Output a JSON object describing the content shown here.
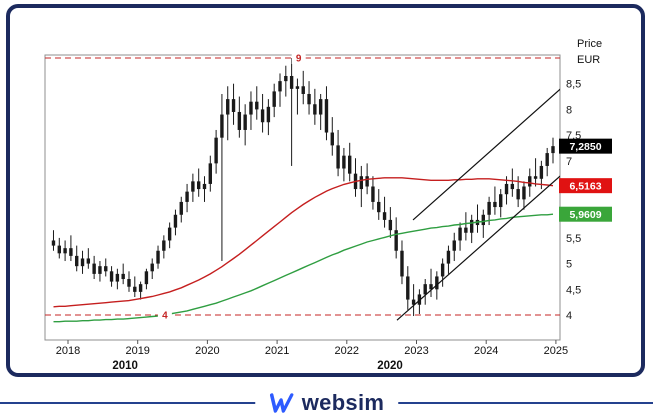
{
  "brand": {
    "name": "websim"
  },
  "chart_data": {
    "type": "candlestick",
    "interval": "monthly",
    "start": "2017-10",
    "price_axis": {
      "unit_labels": [
        "Price",
        "EUR"
      ],
      "ticks": [
        "8,5",
        "8",
        "7,5",
        "7",
        "6,5",
        "6",
        "5,5",
        "5",
        "4,5",
        "4"
      ],
      "tick_values": [
        8.5,
        8,
        7.5,
        7,
        6.5,
        6,
        5.5,
        5,
        4.5,
        4
      ],
      "range": [
        3.5,
        9.05
      ]
    },
    "time_axis": {
      "ticks": [
        "2018",
        "2019",
        "2020",
        "2021",
        "2022",
        "2023",
        "2024",
        "2025"
      ],
      "tick_values": [
        2018,
        2019,
        2020,
        2021,
        2022,
        2023,
        2024,
        2025
      ],
      "decade_labels": [
        {
          "label": "2010",
          "year": 2018.82
        },
        {
          "label": "2020",
          "year": 2022.62
        }
      ]
    },
    "hlines": [
      {
        "value": 9,
        "label": "9",
        "label_year": 2021.31,
        "color": "#c42424",
        "style": "dashed"
      },
      {
        "value": 4,
        "label": "4",
        "label_year": 2019.39,
        "color": "#c42424",
        "style": "dashed"
      }
    ],
    "last_price": 7.285,
    "last_price_label": "7,2850",
    "last_price_box_color": "#000000",
    "candle_color": "#1a1a1a",
    "ohlc": [
      [
        5.45,
        5.65,
        5.25,
        5.35
      ],
      [
        5.35,
        5.5,
        5.1,
        5.2
      ],
      [
        5.2,
        5.45,
        5.05,
        5.3
      ],
      [
        5.3,
        5.55,
        5.05,
        5.15
      ],
      [
        5.15,
        5.35,
        4.85,
        4.95
      ],
      [
        4.95,
        5.25,
        4.8,
        5.1
      ],
      [
        5.1,
        5.3,
        4.9,
        5.0
      ],
      [
        5.0,
        5.15,
        4.7,
        4.8
      ],
      [
        4.8,
        5.05,
        4.65,
        4.95
      ],
      [
        4.95,
        5.1,
        4.75,
        4.85
      ],
      [
        4.85,
        4.95,
        4.55,
        4.65
      ],
      [
        4.65,
        4.9,
        4.5,
        4.8
      ],
      [
        4.8,
        5.0,
        4.6,
        4.7
      ],
      [
        4.7,
        4.85,
        4.45,
        4.55
      ],
      [
        4.55,
        4.75,
        4.35,
        4.45
      ],
      [
        4.45,
        4.65,
        4.3,
        4.6
      ],
      [
        4.6,
        4.9,
        4.5,
        4.85
      ],
      [
        4.85,
        5.1,
        4.7,
        5.0
      ],
      [
        5.0,
        5.35,
        4.9,
        5.25
      ],
      [
        5.25,
        5.55,
        5.1,
        5.45
      ],
      [
        5.45,
        5.8,
        5.3,
        5.7
      ],
      [
        5.7,
        6.05,
        5.55,
        5.95
      ],
      [
        5.95,
        6.3,
        5.8,
        6.2
      ],
      [
        6.2,
        6.55,
        6.0,
        6.4
      ],
      [
        6.4,
        6.75,
        6.2,
        6.6
      ],
      [
        6.6,
        6.85,
        6.3,
        6.45
      ],
      [
        6.45,
        6.7,
        6.2,
        6.55
      ],
      [
        6.55,
        7.1,
        6.4,
        6.95
      ],
      [
        6.95,
        7.6,
        6.75,
        7.45
      ],
      [
        7.45,
        8.3,
        5.05,
        7.9
      ],
      [
        7.9,
        8.45,
        7.4,
        8.2
      ],
      [
        8.2,
        8.5,
        7.7,
        7.95
      ],
      [
        7.95,
        8.25,
        7.45,
        7.6
      ],
      [
        7.6,
        8.1,
        7.3,
        7.9
      ],
      [
        7.9,
        8.35,
        7.6,
        8.15
      ],
      [
        8.15,
        8.45,
        7.8,
        8.0
      ],
      [
        8.0,
        8.3,
        7.55,
        7.75
      ],
      [
        7.75,
        8.2,
        7.5,
        8.05
      ],
      [
        8.05,
        8.5,
        7.85,
        8.35
      ],
      [
        8.35,
        8.7,
        8.05,
        8.55
      ],
      [
        8.55,
        8.85,
        8.25,
        8.65
      ],
      [
        8.65,
        9.0,
        6.9,
        8.4
      ],
      [
        8.4,
        8.6,
        7.9,
        8.45
      ],
      [
        8.45,
        8.75,
        8.1,
        8.3
      ],
      [
        8.3,
        8.55,
        7.9,
        8.1
      ],
      [
        8.1,
        8.4,
        7.7,
        7.9
      ],
      [
        7.9,
        8.3,
        7.6,
        8.2
      ],
      [
        8.2,
        8.45,
        7.4,
        7.55
      ],
      [
        7.55,
        7.85,
        7.1,
        7.3
      ],
      [
        7.3,
        7.6,
        6.7,
        6.85
      ],
      [
        6.85,
        7.25,
        6.6,
        7.1
      ],
      [
        7.1,
        7.35,
        6.6,
        6.75
      ],
      [
        6.75,
        7.05,
        6.3,
        6.45
      ],
      [
        6.45,
        6.9,
        6.1,
        6.7
      ],
      [
        6.7,
        6.95,
        6.35,
        6.5
      ],
      [
        6.5,
        6.7,
        6.05,
        6.2
      ],
      [
        6.2,
        6.45,
        5.85,
        6.0
      ],
      [
        6.0,
        6.3,
        5.7,
        5.85
      ],
      [
        5.85,
        6.1,
        5.5,
        5.65
      ],
      [
        5.65,
        5.9,
        5.1,
        5.25
      ],
      [
        5.25,
        5.45,
        4.6,
        4.75
      ],
      [
        4.75,
        4.95,
        4.1,
        4.3
      ],
      [
        4.3,
        4.6,
        3.98,
        4.2
      ],
      [
        4.2,
        4.5,
        4.02,
        4.4
      ],
      [
        4.4,
        4.7,
        4.2,
        4.6
      ],
      [
        4.6,
        4.9,
        4.35,
        4.5
      ],
      [
        4.5,
        4.85,
        4.3,
        4.75
      ],
      [
        4.75,
        5.1,
        4.55,
        5.0
      ],
      [
        5.0,
        5.35,
        4.8,
        5.25
      ],
      [
        5.25,
        5.6,
        5.05,
        5.45
      ],
      [
        5.45,
        5.8,
        5.25,
        5.7
      ],
      [
        5.7,
        6.0,
        5.45,
        5.6
      ],
      [
        5.6,
        5.95,
        5.4,
        5.85
      ],
      [
        5.85,
        6.15,
        5.6,
        5.75
      ],
      [
        5.75,
        6.05,
        5.5,
        5.95
      ],
      [
        5.95,
        6.3,
        5.75,
        6.2
      ],
      [
        6.2,
        6.5,
        5.95,
        6.1
      ],
      [
        6.1,
        6.45,
        5.9,
        6.35
      ],
      [
        6.35,
        6.7,
        6.15,
        6.55
      ],
      [
        6.55,
        6.85,
        6.3,
        6.45
      ],
      [
        6.45,
        6.7,
        6.1,
        6.25
      ],
      [
        6.25,
        6.6,
        6.05,
        6.5
      ],
      [
        6.5,
        6.85,
        6.3,
        6.7
      ],
      [
        6.7,
        7.05,
        6.5,
        6.65
      ],
      [
        6.65,
        7.0,
        6.45,
        6.9
      ],
      [
        6.9,
        7.25,
        6.7,
        7.15
      ],
      [
        7.15,
        7.45,
        6.95,
        7.285
      ]
    ],
    "overlays": [
      {
        "name": "ma-red",
        "color": "#c51f1f",
        "last_value": 6.5163,
        "last_value_label": "6,5163",
        "box_color": "#e01212",
        "values": [
          4.16,
          4.17,
          4.17,
          4.18,
          4.19,
          4.2,
          4.21,
          4.22,
          4.23,
          4.24,
          4.25,
          4.26,
          4.27,
          4.28,
          4.3,
          4.32,
          4.34,
          4.36,
          4.39,
          4.42,
          4.45,
          4.49,
          4.53,
          4.58,
          4.63,
          4.68,
          4.74,
          4.8,
          4.87,
          4.94,
          5.02,
          5.1,
          5.18,
          5.27,
          5.36,
          5.45,
          5.54,
          5.63,
          5.72,
          5.81,
          5.9,
          5.99,
          6.07,
          6.15,
          6.22,
          6.29,
          6.35,
          6.41,
          6.46,
          6.5,
          6.54,
          6.57,
          6.6,
          6.62,
          6.64,
          6.65,
          6.66,
          6.67,
          6.67,
          6.67,
          6.67,
          6.66,
          6.65,
          6.64,
          6.63,
          6.62,
          6.62,
          6.62,
          6.62,
          6.63,
          6.63,
          6.64,
          6.64,
          6.65,
          6.65,
          6.65,
          6.64,
          6.63,
          6.62,
          6.61,
          6.6,
          6.58,
          6.57,
          6.55,
          6.54,
          6.53,
          6.5163
        ]
      },
      {
        "name": "ma-green",
        "color": "#2f9e41",
        "last_value": 5.9609,
        "last_value_label": "5,9609",
        "box_color": "#3aa63a",
        "values": [
          3.87,
          3.87,
          3.88,
          3.88,
          3.88,
          3.89,
          3.89,
          3.9,
          3.9,
          3.91,
          3.91,
          3.92,
          3.92,
          3.93,
          3.94,
          3.95,
          3.96,
          3.97,
          3.98,
          4.0,
          4.02,
          4.04,
          4.06,
          4.08,
          4.11,
          4.14,
          4.17,
          4.2,
          4.23,
          4.27,
          4.31,
          4.35,
          4.39,
          4.43,
          4.47,
          4.52,
          4.57,
          4.62,
          4.67,
          4.72,
          4.77,
          4.82,
          4.87,
          4.92,
          4.97,
          5.02,
          5.07,
          5.12,
          5.17,
          5.21,
          5.26,
          5.3,
          5.34,
          5.38,
          5.42,
          5.45,
          5.48,
          5.51,
          5.54,
          5.57,
          5.59,
          5.61,
          5.63,
          5.65,
          5.67,
          5.69,
          5.7,
          5.72,
          5.73,
          5.75,
          5.76,
          5.78,
          5.79,
          5.81,
          5.82,
          5.84,
          5.85,
          5.87,
          5.88,
          5.9,
          5.91,
          5.92,
          5.93,
          5.94,
          5.95,
          5.95,
          5.9609
        ]
      }
    ],
    "channel": {
      "color": "#111111",
      "lines": [
        {
          "x1": 2022.95,
          "y1": 5.85,
          "x2": 2025.15,
          "y2": 8.5
        },
        {
          "x1": 2022.72,
          "y1": 3.9,
          "x2": 2025.1,
          "y2": 6.75
        }
      ]
    }
  }
}
